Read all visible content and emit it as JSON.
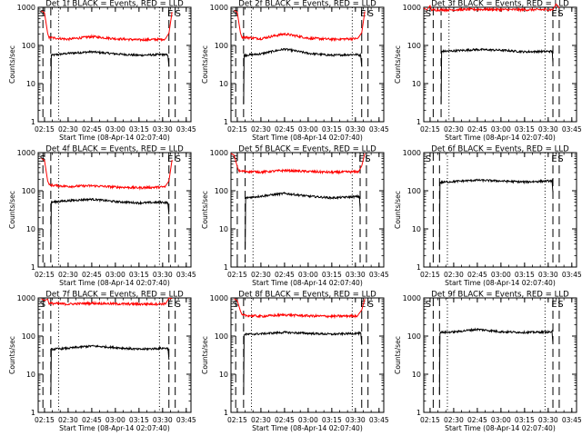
{
  "figure": {
    "xlabel": "Start Time (08-Apr-14 02:07:40)",
    "ylabel": "Counts/sec"
  },
  "chart_data": [
    {
      "type": "line",
      "title": "Det 1f BLACK = Events, RED = LLD",
      "xlabel": "Start Time (08-Apr-14 02:07:40)",
      "ylabel": "Counts/sec",
      "y_scale": "log",
      "ylim": [
        1,
        1000
      ],
      "xlim": [
        "02:11",
        "03:48"
      ],
      "x_ticks": [
        "02:15",
        "02:30",
        "02:45",
        "03:00",
        "03:15",
        "03:30",
        "03:45"
      ],
      "y_ticks": [
        "1",
        "10",
        "100",
        "1000"
      ],
      "series": [
        {
          "name": "Events",
          "color": "#000000",
          "start": "02:19",
          "end": "03:34",
          "x": [
            "02:19",
            "02:30",
            "02:45",
            "03:00",
            "03:15",
            "03:30",
            "03:34"
          ],
          "values": [
            55,
            62,
            68,
            60,
            55,
            58,
            55
          ]
        },
        {
          "name": "LLD",
          "color": "#ff0000",
          "start": "02:13",
          "end": "03:36",
          "x": [
            "02:19",
            "02:30",
            "02:45",
            "03:00",
            "03:15",
            "03:30",
            "03:34"
          ],
          "values": [
            160,
            145,
            170,
            150,
            140,
            145,
            150
          ]
        }
      ],
      "markers": {
        "dashed": [
          "02:14",
          "02:19",
          "03:34",
          "03:38"
        ],
        "dotted": [
          "02:24",
          "03:28"
        ],
        "letters": [
          {
            "text": "S",
            "x": "02:12"
          },
          {
            "text": "E",
            "x": "03:33"
          },
          {
            "text": "S",
            "x": "03:38"
          }
        ]
      }
    },
    {
      "type": "line",
      "title": "Det 2f BLACK = Events, RED = LLD",
      "xlabel": "Start Time (08-Apr-14 02:07:40)",
      "ylabel": "Counts/sec",
      "y_scale": "log",
      "ylim": [
        1,
        1000
      ],
      "xlim": [
        "02:11",
        "03:48"
      ],
      "x_ticks": [
        "02:15",
        "02:30",
        "02:45",
        "03:00",
        "03:15",
        "03:30",
        "03:45"
      ],
      "y_ticks": [
        "1",
        "10",
        "100",
        "1000"
      ],
      "series": [
        {
          "name": "Events",
          "color": "#000000",
          "start": "02:19",
          "end": "03:34",
          "x": [
            "02:19",
            "02:30",
            "02:45",
            "03:00",
            "03:15",
            "03:30",
            "03:34"
          ],
          "values": [
            55,
            60,
            80,
            62,
            55,
            58,
            55
          ]
        },
        {
          "name": "LLD",
          "color": "#ff0000",
          "start": "02:13",
          "end": "03:36",
          "x": [
            "02:19",
            "02:30",
            "02:45",
            "03:00",
            "03:15",
            "03:30",
            "03:34"
          ],
          "values": [
            165,
            150,
            200,
            155,
            145,
            150,
            155
          ]
        }
      ],
      "markers": {
        "dashed": [
          "02:14",
          "02:19",
          "03:34",
          "03:38"
        ],
        "dotted": [
          "02:24",
          "03:28"
        ],
        "letters": [
          {
            "text": "S",
            "x": "02:12"
          },
          {
            "text": "E",
            "x": "03:33"
          },
          {
            "text": "S",
            "x": "03:38"
          }
        ]
      }
    },
    {
      "type": "line",
      "title": "Det 3f BLACK = Events, RED = LLD",
      "xlabel": "Start Time (08-Apr-14 02:07:40)",
      "ylabel": "Counts/sec",
      "y_scale": "log",
      "ylim": [
        1,
        1000
      ],
      "xlim": [
        "02:11",
        "03:48"
      ],
      "x_ticks": [
        "02:15",
        "02:30",
        "02:45",
        "03:00",
        "03:15",
        "03:30",
        "03:45"
      ],
      "y_ticks": [
        "1",
        "10",
        "100",
        "1000"
      ],
      "series": [
        {
          "name": "Events",
          "color": "#000000",
          "start": "02:22",
          "end": "03:33",
          "x": [
            "02:22",
            "02:30",
            "02:45",
            "03:00",
            "03:15",
            "03:30",
            "03:33"
          ],
          "values": [
            70,
            72,
            78,
            75,
            68,
            70,
            70
          ]
        },
        {
          "name": "LLD",
          "color": "#ff0000",
          "start": "02:11",
          "end": "03:37",
          "x": [
            "02:15",
            "02:30",
            "02:45",
            "03:00",
            "03:15",
            "03:30",
            "03:36"
          ],
          "values": [
            850,
            860,
            880,
            870,
            860,
            865,
            870
          ]
        }
      ],
      "markers": {
        "dashed": [
          "02:17",
          "02:22",
          "03:33",
          "03:37"
        ],
        "dotted": [
          "02:27",
          "03:28"
        ],
        "letters": [
          {
            "text": "S",
            "x": "02:12"
          },
          {
            "text": "E",
            "x": "03:32"
          },
          {
            "text": "S",
            "x": "03:36"
          }
        ]
      }
    },
    {
      "type": "line",
      "title": "Det 4f BLACK = Events, RED = LLD",
      "xlabel": "Start Time (08-Apr-14 02:07:40)",
      "ylabel": "Counts/sec",
      "y_scale": "log",
      "ylim": [
        1,
        1000
      ],
      "xlim": [
        "02:11",
        "03:48"
      ],
      "x_ticks": [
        "02:15",
        "02:30",
        "02:45",
        "03:00",
        "03:15",
        "03:30",
        "03:45"
      ],
      "y_ticks": [
        "1",
        "10",
        "100",
        "1000"
      ],
      "series": [
        {
          "name": "Events",
          "color": "#000000",
          "start": "02:19",
          "end": "03:34",
          "x": [
            "02:19",
            "02:30",
            "02:45",
            "03:00",
            "03:15",
            "03:30",
            "03:34"
          ],
          "values": [
            50,
            55,
            60,
            52,
            48,
            50,
            48
          ]
        },
        {
          "name": "LLD",
          "color": "#ff0000",
          "start": "02:13",
          "end": "03:36",
          "x": [
            "02:19",
            "02:30",
            "02:45",
            "03:00",
            "03:15",
            "03:30",
            "03:34"
          ],
          "values": [
            140,
            130,
            135,
            125,
            120,
            125,
            130
          ]
        }
      ],
      "markers": {
        "dashed": [
          "02:14",
          "02:19",
          "03:34",
          "03:38"
        ],
        "dotted": [
          "02:24",
          "03:28"
        ],
        "letters": [
          {
            "text": "S",
            "x": "02:12"
          },
          {
            "text": "E",
            "x": "03:33"
          },
          {
            "text": "S",
            "x": "03:38"
          }
        ]
      }
    },
    {
      "type": "line",
      "title": "Det 5f BLACK = Events, RED = LLD",
      "xlabel": "Start Time (08-Apr-14 02:07:40)",
      "ylabel": "Counts/sec",
      "y_scale": "log",
      "ylim": [
        1,
        1000
      ],
      "xlim": [
        "02:11",
        "03:48"
      ],
      "x_ticks": [
        "02:15",
        "02:30",
        "02:45",
        "03:00",
        "03:15",
        "03:30",
        "03:45"
      ],
      "y_ticks": [
        "1",
        "10",
        "100",
        "1000"
      ],
      "series": [
        {
          "name": "Events",
          "color": "#000000",
          "start": "02:20",
          "end": "03:33",
          "x": [
            "02:20",
            "02:30",
            "02:45",
            "03:00",
            "03:15",
            "03:30",
            "03:33"
          ],
          "values": [
            65,
            72,
            85,
            72,
            65,
            70,
            70
          ]
        },
        {
          "name": "LLD",
          "color": "#ff0000",
          "start": "02:11",
          "end": "03:36",
          "x": [
            "02:15",
            "02:30",
            "02:45",
            "03:00",
            "03:15",
            "03:30",
            "03:35"
          ],
          "values": [
            330,
            310,
            340,
            320,
            305,
            315,
            320
          ]
        }
      ],
      "markers": {
        "dashed": [
          "02:15",
          "02:20",
          "03:33",
          "03:37"
        ],
        "dotted": [
          "02:25",
          "03:28"
        ],
        "letters": [
          {
            "text": "S",
            "x": "02:12"
          },
          {
            "text": "E",
            "x": "03:32"
          },
          {
            "text": "S",
            "x": "03:36"
          }
        ]
      }
    },
    {
      "type": "line",
      "title": "Det 6f BLACK = Events, RED = LLD",
      "xlabel": "Start Time (08-Apr-14 02:07:40)",
      "ylabel": "Counts/sec",
      "y_scale": "log",
      "ylim": [
        1,
        1000
      ],
      "xlim": [
        "02:11",
        "03:48"
      ],
      "x_ticks": [
        "02:15",
        "02:30",
        "02:45",
        "03:00",
        "03:15",
        "03:30",
        "03:45"
      ],
      "y_ticks": [
        "1",
        "10",
        "100",
        "1000"
      ],
      "series": [
        {
          "name": "Events",
          "color": "#000000",
          "start": "02:21",
          "end": "03:33",
          "x": [
            "02:21",
            "02:30",
            "02:45",
            "03:00",
            "03:15",
            "03:30",
            "03:33"
          ],
          "values": [
            165,
            175,
            190,
            180,
            170,
            180,
            180
          ]
        }
      ],
      "markers": {
        "dashed": [
          "02:17",
          "02:21",
          "03:33",
          "03:37"
        ],
        "dotted": [
          "02:26",
          "03:28"
        ],
        "letters": [
          {
            "text": "S",
            "x": "02:12"
          },
          {
            "text": "E",
            "x": "03:32"
          },
          {
            "text": "S",
            "x": "03:36"
          }
        ]
      }
    },
    {
      "type": "line",
      "title": "Det 7f BLACK = Events, RED = LLD",
      "xlabel": "Start Time (08-Apr-14 02:07:40)",
      "ylabel": "Counts/sec",
      "y_scale": "log",
      "ylim": [
        1,
        1000
      ],
      "xlim": [
        "02:11",
        "03:48"
      ],
      "x_ticks": [
        "02:15",
        "02:30",
        "02:45",
        "03:00",
        "03:15",
        "03:30",
        "03:45"
      ],
      "y_ticks": [
        "1",
        "10",
        "100",
        "1000"
      ],
      "series": [
        {
          "name": "Events",
          "color": "#000000",
          "start": "02:19",
          "end": "03:34",
          "x": [
            "02:19",
            "02:30",
            "02:45",
            "03:00",
            "03:15",
            "03:30",
            "03:34"
          ],
          "values": [
            45,
            48,
            55,
            50,
            45,
            48,
            48
          ]
        },
        {
          "name": "LLD",
          "color": "#ff0000",
          "start": "02:13",
          "end": "03:36",
          "x": [
            "02:19",
            "02:30",
            "02:45",
            "03:00",
            "03:15",
            "03:30",
            "03:34"
          ],
          "values": [
            720,
            690,
            730,
            700,
            690,
            700,
            710
          ]
        }
      ],
      "markers": {
        "dashed": [
          "02:14",
          "02:19",
          "03:34",
          "03:38"
        ],
        "dotted": [
          "02:24",
          "03:28"
        ],
        "letters": [
          {
            "text": "S",
            "x": "02:12"
          },
          {
            "text": "E",
            "x": "03:33"
          },
          {
            "text": "S",
            "x": "03:38"
          }
        ]
      }
    },
    {
      "type": "line",
      "title": "Det 8f BLACK = Events, RED = LLD",
      "xlabel": "Start Time (08-Apr-14 02:07:40)",
      "ylabel": "Counts/sec",
      "y_scale": "log",
      "ylim": [
        1,
        1000
      ],
      "xlim": [
        "02:11",
        "03:48"
      ],
      "x_ticks": [
        "02:15",
        "02:30",
        "02:45",
        "03:00",
        "03:15",
        "03:30",
        "03:45"
      ],
      "y_ticks": [
        "1",
        "10",
        "100",
        "1000"
      ],
      "series": [
        {
          "name": "Events",
          "color": "#000000",
          "start": "02:19",
          "end": "03:34",
          "x": [
            "02:19",
            "02:30",
            "02:45",
            "03:00",
            "03:15",
            "03:30",
            "03:34"
          ],
          "values": [
            110,
            115,
            125,
            118,
            112,
            118,
            118
          ]
        },
        {
          "name": "LLD",
          "color": "#ff0000",
          "start": "02:13",
          "end": "03:36",
          "x": [
            "02:19",
            "02:30",
            "02:45",
            "03:00",
            "03:15",
            "03:30",
            "03:34"
          ],
          "values": [
            350,
            330,
            360,
            340,
            330,
            340,
            345
          ]
        }
      ],
      "markers": {
        "dashed": [
          "02:14",
          "02:19",
          "03:34",
          "03:38"
        ],
        "dotted": [
          "02:24",
          "03:28"
        ],
        "letters": [
          {
            "text": "S",
            "x": "02:12"
          },
          {
            "text": "E",
            "x": "03:33"
          },
          {
            "text": "S",
            "x": "03:38"
          }
        ]
      }
    },
    {
      "type": "line",
      "title": "Det 9f BLACK = Events, RED = LLD",
      "xlabel": "Start Time (08-Apr-14 02:07:40)",
      "ylabel": "Counts/sec",
      "y_scale": "log",
      "ylim": [
        1,
        1000
      ],
      "xlim": [
        "02:11",
        "03:48"
      ],
      "x_ticks": [
        "02:15",
        "02:30",
        "02:45",
        "03:00",
        "03:15",
        "03:30",
        "03:45"
      ],
      "y_ticks": [
        "1",
        "10",
        "100",
        "1000"
      ],
      "series": [
        {
          "name": "Events",
          "color": "#000000",
          "start": "02:21",
          "end": "03:33",
          "x": [
            "02:21",
            "02:30",
            "02:45",
            "03:00",
            "03:15",
            "03:30",
            "03:33"
          ],
          "values": [
            125,
            128,
            150,
            130,
            125,
            128,
            128
          ]
        }
      ],
      "markers": {
        "dashed": [
          "02:17",
          "02:21",
          "03:33",
          "03:37"
        ],
        "dotted": [
          "02:26",
          "03:28"
        ],
        "letters": [
          {
            "text": "S",
            "x": "02:12"
          },
          {
            "text": "E",
            "x": "03:32"
          },
          {
            "text": "S",
            "x": "03:36"
          }
        ]
      }
    }
  ]
}
